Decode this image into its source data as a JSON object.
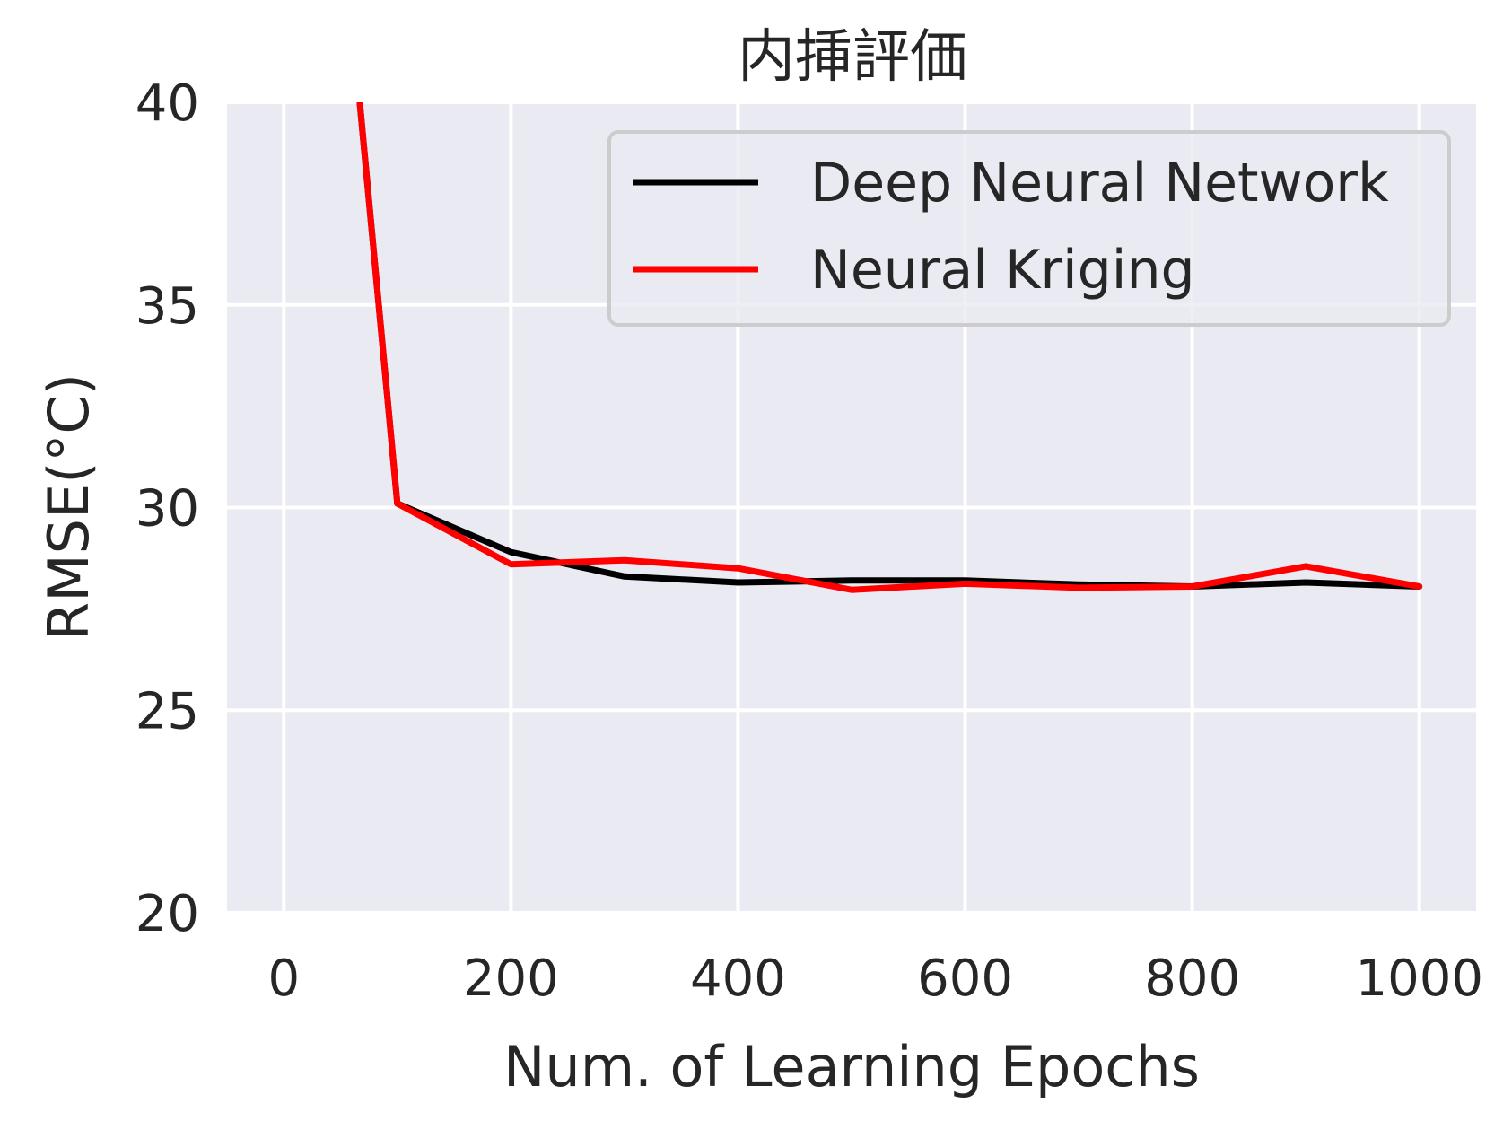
{
  "chart_data": {
    "type": "line",
    "title": "内挿評価",
    "xlabel": "Num. of Learning Epochs",
    "ylabel": "RMSE(°C)",
    "xlim": [
      -50,
      1050
    ],
    "ylim": [
      20,
      40
    ],
    "xticks": [
      0,
      200,
      400,
      600,
      800,
      1000
    ],
    "yticks": [
      20,
      25,
      30,
      35,
      40
    ],
    "grid": true,
    "legend_position": "top-right",
    "series": [
      {
        "name": "Deep Neural Network",
        "color": "#000000",
        "x": [
          0,
          100,
          200,
          300,
          400,
          500,
          600,
          700,
          800,
          900,
          1000
        ],
        "y": [
          60,
          30.1,
          28.9,
          28.3,
          28.15,
          28.2,
          28.2,
          28.1,
          28.05,
          28.15,
          28.05
        ]
      },
      {
        "name": "Neural Kriging",
        "color": "#ff0000",
        "x": [
          0,
          100,
          200,
          300,
          400,
          500,
          600,
          700,
          800,
          900,
          1000
        ],
        "y": [
          60,
          30.1,
          28.6,
          28.7,
          28.5,
          27.97,
          28.12,
          28.02,
          28.05,
          28.55,
          28.05
        ]
      }
    ]
  }
}
